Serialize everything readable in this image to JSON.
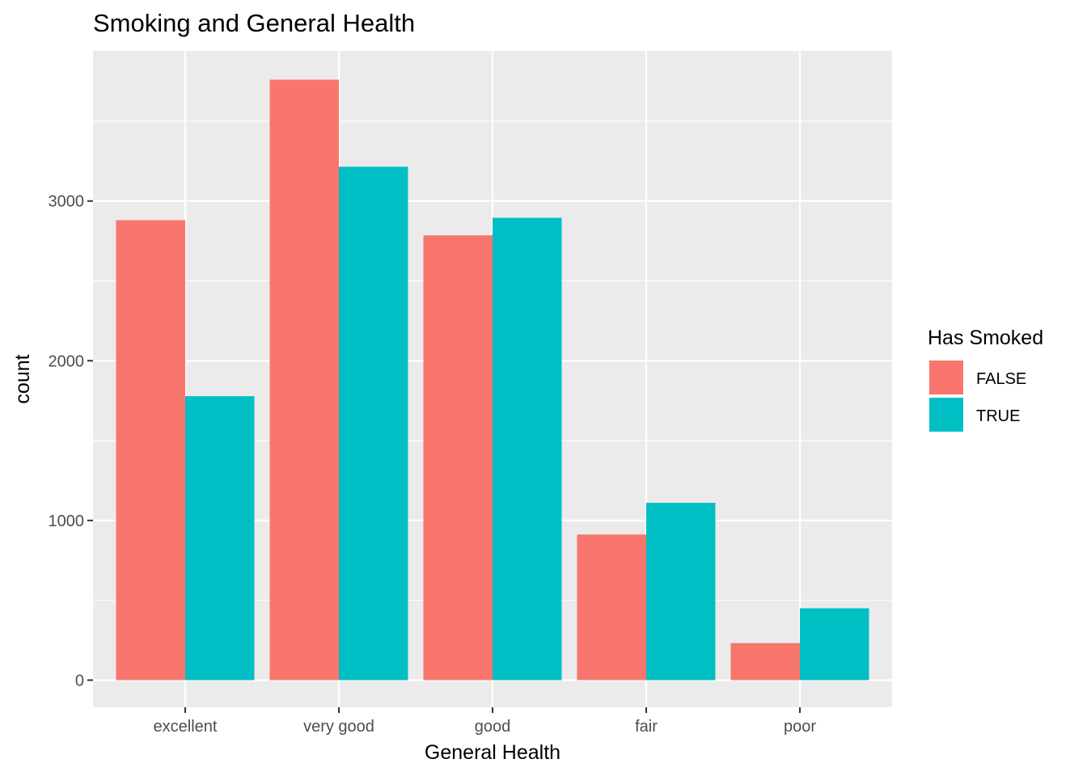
{
  "chart_data": {
    "type": "bar",
    "title": "Smoking and General Health",
    "xlabel": "General Health",
    "ylabel": "count",
    "categories": [
      "excellent",
      "very good",
      "good",
      "fair",
      "poor"
    ],
    "series": [
      {
        "name": "FALSE",
        "color": "#F8766D",
        "values": [
          2880,
          3760,
          2785,
          912,
          232
        ]
      },
      {
        "name": "TRUE",
        "color": "#00BFC4",
        "values": [
          1778,
          3215,
          2895,
          1110,
          450
        ]
      }
    ],
    "ylim": [
      -170,
      3940
    ],
    "yticks": [
      0,
      1000,
      2000,
      3000
    ],
    "ytick_labels": [
      "0",
      "1000",
      "2000",
      "3000"
    ],
    "grid": true,
    "legend": {
      "title": "Has Smoked",
      "position": "right"
    },
    "colors": {
      "panel": "#EBEBEB",
      "gridline": "#FFFFFF"
    }
  }
}
